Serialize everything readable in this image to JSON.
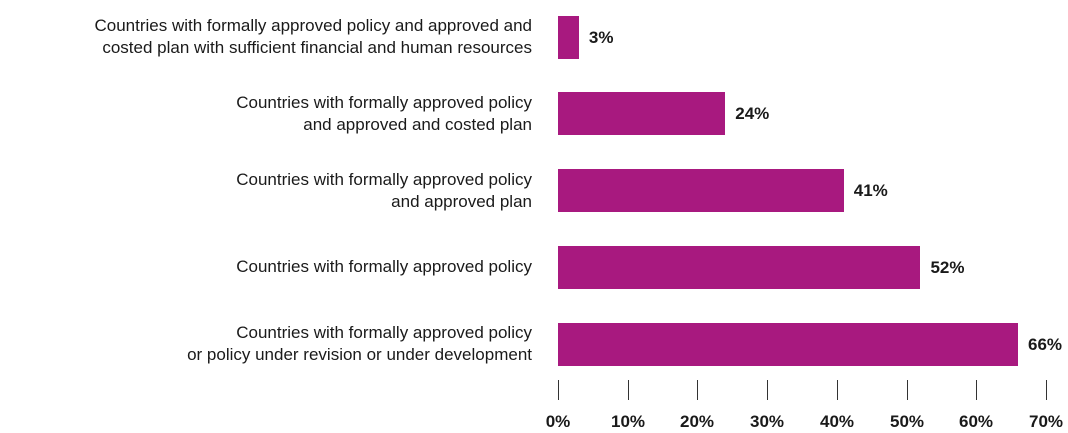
{
  "chart_data": {
    "type": "bar",
    "orientation": "horizontal",
    "categories": [
      [
        "Countries with formally approved policy and approved and",
        "costed plan with sufficient financial and human resources"
      ],
      [
        "Countries with formally approved policy",
        "and approved and costed plan"
      ],
      [
        "Countries with formally approved policy",
        "and approved plan"
      ],
      [
        "Countries with formally approved policy"
      ],
      [
        "Countries with formally approved policy",
        "or policy under revision or under development"
      ]
    ],
    "values": [
      3,
      24,
      41,
      52,
      66
    ],
    "value_labels": [
      "3%",
      "24%",
      "41%",
      "52%",
      "66%"
    ],
    "xlim": [
      0,
      70
    ],
    "xticks": [
      "0%",
      "10%",
      "20%",
      "30%",
      "40%",
      "50%",
      "60%",
      "70%"
    ],
    "grid": false,
    "bar_color": "#a8197f"
  }
}
